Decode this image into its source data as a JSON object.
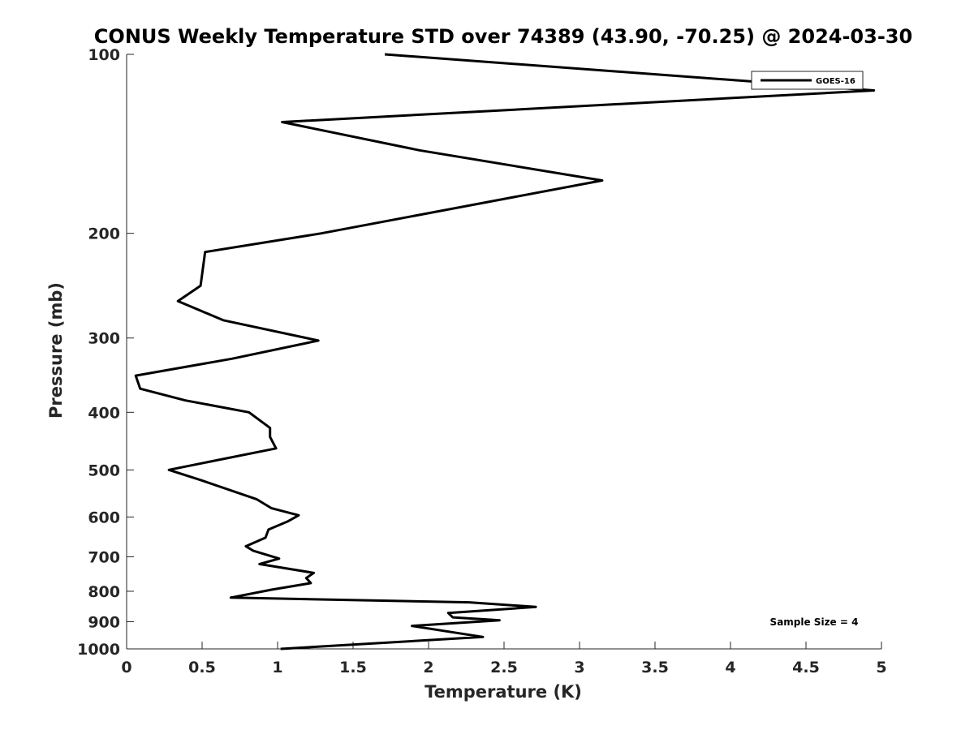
{
  "chart_data": {
    "type": "line",
    "title": "CONUS Weekly Temperature STD over 74389 (43.90, -70.25) @ 2024-03-30",
    "xlabel": "Temperature (K)",
    "ylabel": "Pressure (mb)",
    "xlim": [
      0,
      5
    ],
    "ylim": [
      100,
      1000
    ],
    "y_scale": "log",
    "y_reversed": true,
    "x_ticks": [
      0,
      0.5,
      1,
      1.5,
      2,
      2.5,
      3,
      3.5,
      4,
      4.5,
      5
    ],
    "x_tick_labels": [
      "0",
      "0.5",
      "1",
      "1.5",
      "2",
      "2.5",
      "3",
      "3.5",
      "4",
      "4.5",
      "5"
    ],
    "y_ticks": [
      100,
      200,
      300,
      400,
      500,
      600,
      700,
      800,
      900,
      1000
    ],
    "y_tick_labels": [
      "100",
      "200",
      "300",
      "400",
      "500",
      "600",
      "700",
      "800",
      "900",
      "1000"
    ],
    "grid": false,
    "legend_position": "top-right",
    "annotation": "Sample Size = 4",
    "series": [
      {
        "name": "GOES-16",
        "color": "#000000",
        "points": [
          [
            1.71,
            100
          ],
          [
            4.95,
            115
          ],
          [
            1.03,
            130
          ],
          [
            1.94,
            145
          ],
          [
            3.15,
            163
          ],
          [
            1.29,
            200
          ],
          [
            0.52,
            215
          ],
          [
            0.49,
            245
          ],
          [
            0.34,
            260
          ],
          [
            0.64,
            280
          ],
          [
            1.27,
            303
          ],
          [
            0.7,
            325
          ],
          [
            0.06,
            347
          ],
          [
            0.09,
            365
          ],
          [
            0.39,
            382
          ],
          [
            0.81,
            400
          ],
          [
            0.95,
            425
          ],
          [
            0.95,
            440
          ],
          [
            0.99,
            460
          ],
          [
            0.28,
            500
          ],
          [
            0.49,
            520
          ],
          [
            0.86,
            560
          ],
          [
            0.96,
            580
          ],
          [
            1.14,
            596
          ],
          [
            1.07,
            610
          ],
          [
            0.94,
            630
          ],
          [
            0.92,
            650
          ],
          [
            0.79,
            672
          ],
          [
            0.84,
            684
          ],
          [
            1.01,
            705
          ],
          [
            0.88,
            720
          ],
          [
            1.24,
            745
          ],
          [
            1.19,
            760
          ],
          [
            1.22,
            775
          ],
          [
            0.96,
            795
          ],
          [
            0.69,
            820
          ],
          [
            2.27,
            835
          ],
          [
            2.71,
            850
          ],
          [
            2.13,
            870
          ],
          [
            2.16,
            885
          ],
          [
            2.47,
            895
          ],
          [
            1.89,
            915
          ],
          [
            2.36,
            955
          ],
          [
            1.02,
            1000
          ]
        ]
      }
    ]
  }
}
